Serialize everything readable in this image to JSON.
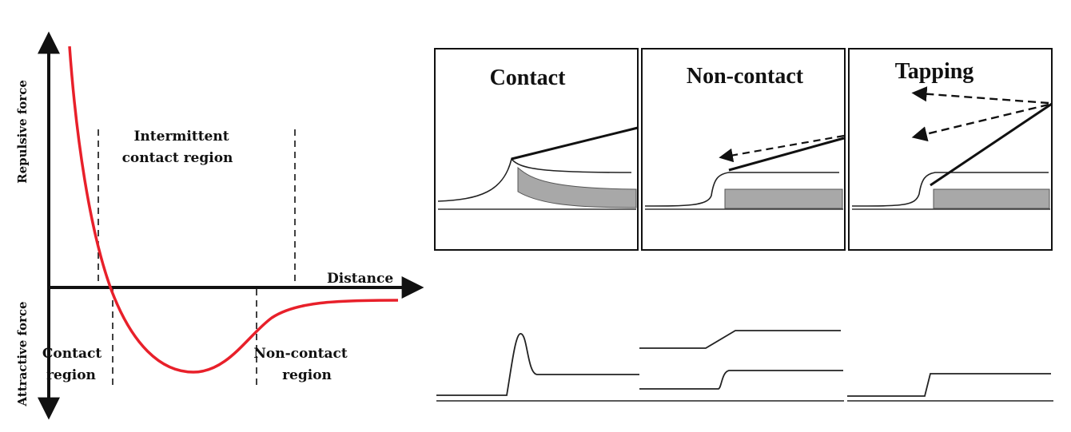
{
  "force_curve": {
    "y_axis_upper_label": "Repulsive force",
    "y_axis_lower_label": "Attractive force",
    "x_axis_label": "Distance",
    "regions": {
      "intermittent": [
        "Intermittent",
        "contact region"
      ],
      "contact": [
        "Contact",
        "region"
      ],
      "noncontact": [
        "Non-contact",
        "region"
      ]
    },
    "curve_color": "#e8202a"
  },
  "modes": {
    "panels": [
      {
        "title": "Contact"
      },
      {
        "title": "Non-contact"
      },
      {
        "title": "Tapping"
      }
    ]
  }
}
